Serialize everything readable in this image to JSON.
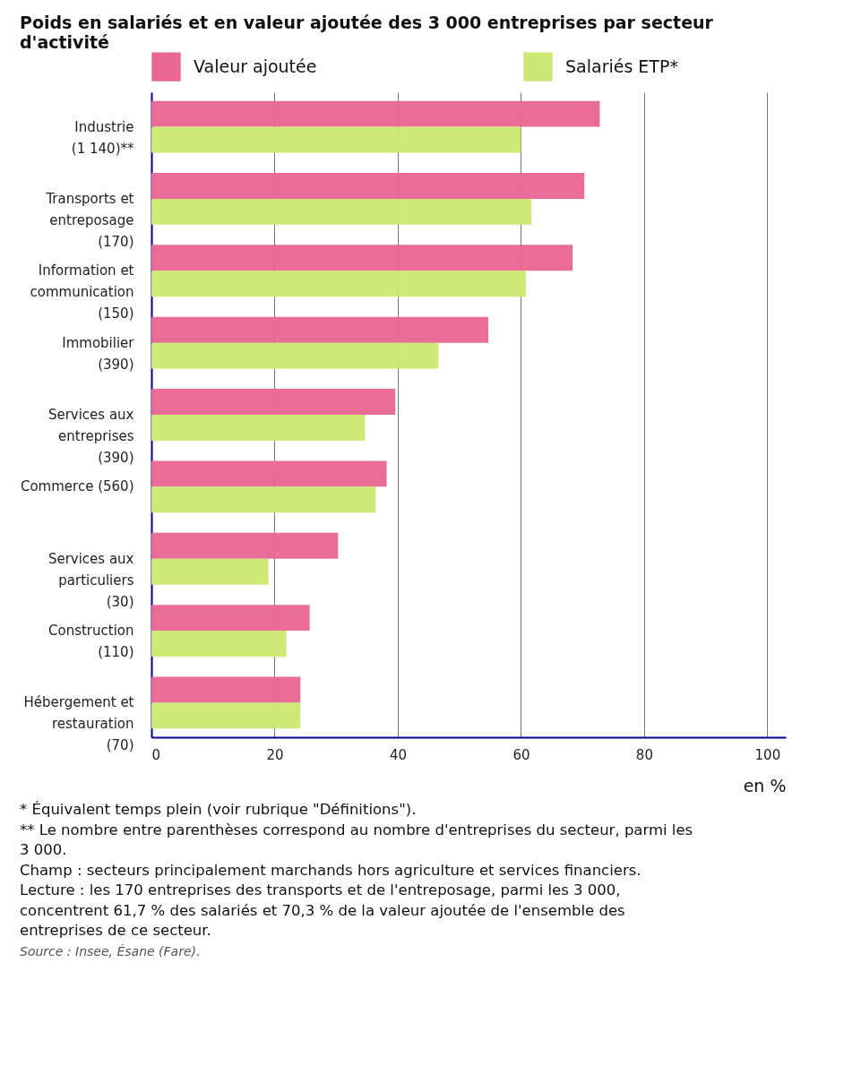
{
  "chart_data": {
    "type": "bar",
    "orientation": "horizontal",
    "title": "Poids en salariés et en valeur ajoutée des 3 000 entreprises par secteur d'activité",
    "xlabel": "en %",
    "categories": [
      "Industrie\n(1 140)**",
      "Transports et\nentreposage\n(170)",
      "Information et\ncommunication\n(150)",
      "Immobilier\n(390)",
      "Services aux\nentreprises\n(390)",
      "Commerce (560)",
      "Services aux\nparticuliers\n(30)",
      "Construction\n(110)",
      "Hébergement et\nrestauration\n(70)"
    ],
    "series": [
      {
        "name": "Valeur ajoutée",
        "color": "#e86893",
        "values": [
          72.8,
          70.3,
          68.4,
          54.7,
          39.6,
          38.2,
          30.3,
          25.7,
          24.2
        ]
      },
      {
        "name": "Salariés ETP*",
        "color": "#cbe972",
        "values": [
          60.0,
          61.7,
          60.8,
          46.6,
          34.7,
          36.4,
          19.0,
          21.9,
          24.2
        ]
      }
    ],
    "xlim": [
      0,
      103
    ],
    "xticks": [
      0,
      20,
      40,
      60,
      80,
      100
    ],
    "grid": "x",
    "legend": "top",
    "annotations": [
      "* Équivalent temps plein (voir rubrique \"Définitions\").",
      "** Le nombre entre parenthèses correspond au nombre d'entreprises du secteur, parmi les 3 000.",
      "Champ : secteurs principalement marchands hors agriculture et services financiers.",
      "Lecture : les 170 entreprises des transports et de l'entreposage, parmi les 3 000, concentrent 61,7 % des salariés et 70,3 % de la valeur ajoutée de l'ensemble des entreprises de ce secteur.",
      "Source : Insee, Ésane (Fare)."
    ]
  }
}
